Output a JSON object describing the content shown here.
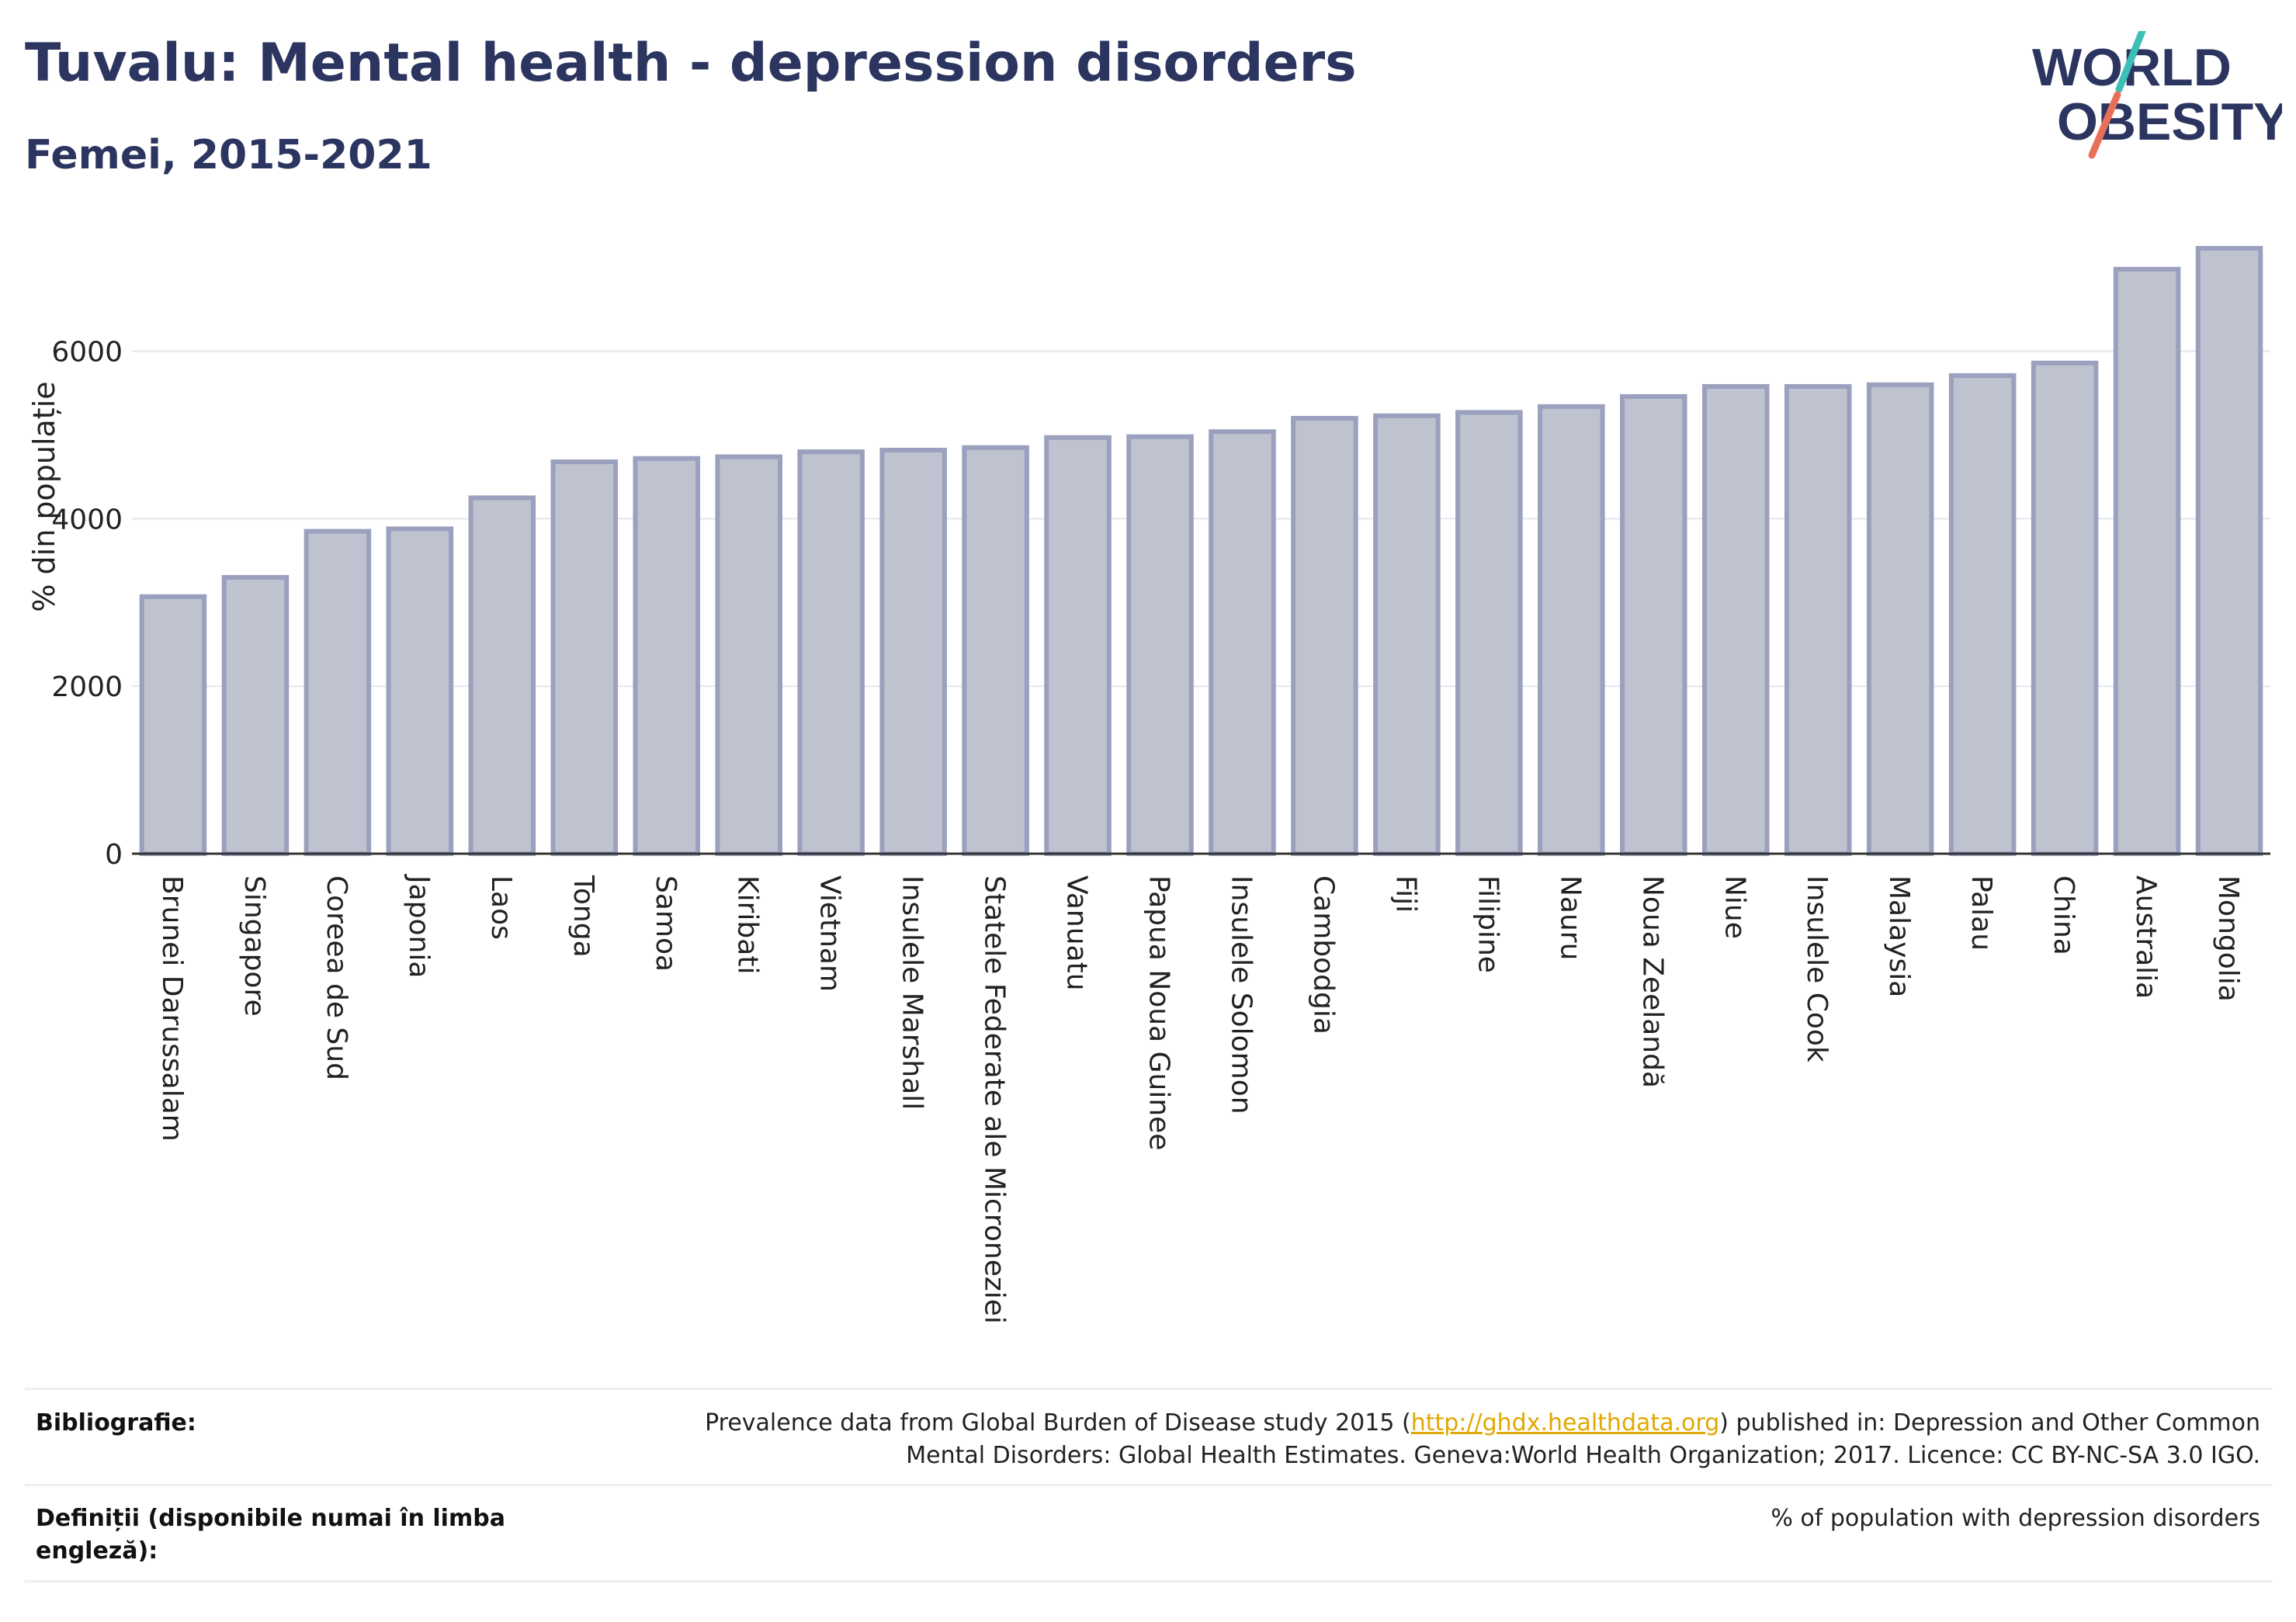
{
  "header": {
    "title": "Tuvalu: Mental health - depression disorders",
    "subtitle": "Femei, 2015-2021",
    "logo_line1": "WORLD",
    "logo_line2": "OBESITY"
  },
  "chart_data": {
    "type": "bar",
    "title": "Tuvalu: Mental health - depression disorders",
    "subtitle": "Femei, 2015-2021",
    "ylabel": "% din populație",
    "xlabel": "",
    "ylim": [
      0,
      7600
    ],
    "yticks": [
      0,
      2000,
      4000,
      6000
    ],
    "grid": true,
    "categories": [
      "Brunei Darussalam",
      "Singapore",
      "Coreea de Sud",
      "Japonia",
      "Laos",
      "Tonga",
      "Samoa",
      "Kiribati",
      "Vietnam",
      "Insulele Marshall",
      "Statele Federate ale Microneziei",
      "Vanuatu",
      "Papua Noua Guinee",
      "Insulele Solomon",
      "Cambodgia",
      "Fiji",
      "Filipine",
      "Nauru",
      "Noua Zeelandă",
      "Niue",
      "Insulele Cook",
      "Malaysia",
      "Palau",
      "China",
      "Australia",
      "Mongolia"
    ],
    "values": [
      3070,
      3300,
      3850,
      3880,
      4250,
      4680,
      4720,
      4740,
      4800,
      4820,
      4850,
      4970,
      4980,
      5040,
      5200,
      5230,
      5270,
      5340,
      5460,
      5580,
      5580,
      5600,
      5710,
      5860,
      6980,
      7230
    ],
    "bar_fill": "#bfc2cf",
    "bar_stroke": "#9aa0bd"
  },
  "footer": {
    "bibliography_label": "Bibliografie:",
    "bibliography_pre": "Prevalence data from Global Burden of Disease study 2015 (",
    "bibliography_link": "http://ghdx.healthdata.org",
    "bibliography_post": ") published in: Depression and Other Common",
    "bibliography_line2": "Mental Disorders: Global Health Estimates. Geneva:World Health Organization; 2017. Licence: CC BY-NC-SA 3.0 IGO.",
    "definitions_label_line1": "Definiții (disponibile numai în limba",
    "definitions_label_line2": "engleză):",
    "definitions_text": "% of population with depression disorders"
  },
  "colors": {
    "title": "#2b3560",
    "logo_teal": "#3cbfb7",
    "logo_coral": "#e8705a",
    "link": "#e0a800"
  }
}
